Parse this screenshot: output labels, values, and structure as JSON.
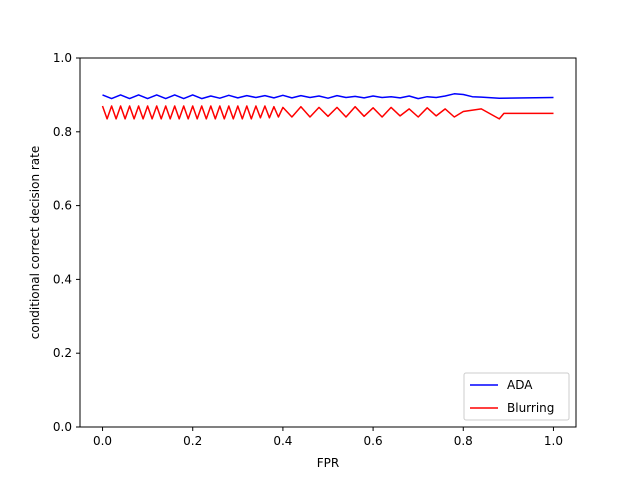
{
  "chart_data": {
    "type": "line",
    "title": "",
    "xlabel": "FPR",
    "ylabel": "conditional correct decision rate",
    "xlim": [
      -0.05,
      1.05
    ],
    "ylim": [
      0.0,
      1.0
    ],
    "xticks": [
      0.0,
      0.2,
      0.4,
      0.6,
      0.8,
      1.0
    ],
    "xtick_labels": [
      "0.0",
      "0.2",
      "0.4",
      "0.6",
      "0.8",
      "1.0"
    ],
    "yticks": [
      0.0,
      0.2,
      0.4,
      0.6,
      0.8,
      1.0
    ],
    "ytick_labels": [
      "0.0",
      "0.2",
      "0.4",
      "0.6",
      "0.8",
      "1.0"
    ],
    "grid": false,
    "legend_position": "lower-right",
    "series": [
      {
        "name": "ADA",
        "color": "#0000ff",
        "x": [
          0.0,
          0.02,
          0.04,
          0.06,
          0.08,
          0.1,
          0.12,
          0.14,
          0.16,
          0.18,
          0.2,
          0.22,
          0.24,
          0.26,
          0.28,
          0.3,
          0.32,
          0.34,
          0.36,
          0.38,
          0.4,
          0.42,
          0.44,
          0.46,
          0.48,
          0.5,
          0.52,
          0.54,
          0.56,
          0.58,
          0.6,
          0.62,
          0.64,
          0.66,
          0.68,
          0.7,
          0.72,
          0.74,
          0.76,
          0.78,
          0.8,
          0.82,
          0.84,
          0.88,
          1.0
        ],
        "y": [
          0.9,
          0.89,
          0.9,
          0.89,
          0.9,
          0.89,
          0.9,
          0.89,
          0.9,
          0.89,
          0.9,
          0.89,
          0.897,
          0.891,
          0.899,
          0.892,
          0.898,
          0.893,
          0.898,
          0.892,
          0.899,
          0.892,
          0.898,
          0.893,
          0.897,
          0.891,
          0.898,
          0.893,
          0.896,
          0.892,
          0.897,
          0.893,
          0.895,
          0.892,
          0.897,
          0.89,
          0.895,
          0.893,
          0.897,
          0.903,
          0.901,
          0.895,
          0.894,
          0.891,
          0.893
        ]
      },
      {
        "name": "Blurring",
        "color": "#ff0000",
        "x": [
          0.0,
          0.01,
          0.02,
          0.03,
          0.04,
          0.05,
          0.06,
          0.07,
          0.08,
          0.09,
          0.1,
          0.11,
          0.12,
          0.13,
          0.14,
          0.15,
          0.16,
          0.17,
          0.18,
          0.19,
          0.2,
          0.21,
          0.22,
          0.23,
          0.24,
          0.25,
          0.26,
          0.27,
          0.28,
          0.29,
          0.3,
          0.31,
          0.32,
          0.33,
          0.34,
          0.35,
          0.36,
          0.37,
          0.38,
          0.39,
          0.4,
          0.42,
          0.44,
          0.46,
          0.48,
          0.5,
          0.52,
          0.54,
          0.56,
          0.58,
          0.6,
          0.62,
          0.64,
          0.66,
          0.68,
          0.7,
          0.72,
          0.74,
          0.76,
          0.78,
          0.8,
          0.84,
          0.88,
          0.89,
          1.0
        ],
        "y": [
          0.87,
          0.835,
          0.87,
          0.835,
          0.87,
          0.835,
          0.87,
          0.835,
          0.87,
          0.835,
          0.87,
          0.835,
          0.87,
          0.835,
          0.87,
          0.835,
          0.87,
          0.835,
          0.87,
          0.835,
          0.87,
          0.835,
          0.87,
          0.835,
          0.87,
          0.835,
          0.87,
          0.835,
          0.87,
          0.835,
          0.87,
          0.835,
          0.87,
          0.835,
          0.87,
          0.838,
          0.87,
          0.838,
          0.868,
          0.84,
          0.866,
          0.84,
          0.868,
          0.84,
          0.866,
          0.842,
          0.866,
          0.84,
          0.868,
          0.842,
          0.865,
          0.84,
          0.866,
          0.843,
          0.862,
          0.84,
          0.865,
          0.843,
          0.862,
          0.84,
          0.855,
          0.862,
          0.835,
          0.85,
          0.85
        ]
      }
    ]
  }
}
